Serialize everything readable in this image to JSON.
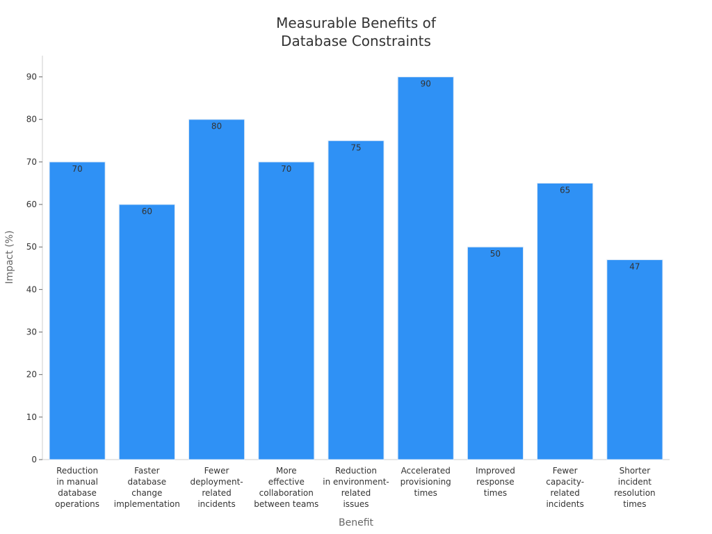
{
  "chart_data": {
    "type": "bar",
    "title_lines": [
      "Measurable Benefits of",
      "Database Constraints"
    ],
    "xlabel": "Benefit",
    "ylabel": "Impact (%)",
    "ylim": [
      0,
      95
    ],
    "yticks": [
      0,
      10,
      20,
      30,
      40,
      50,
      60,
      70,
      80,
      90
    ],
    "grid": false,
    "bar_color": "#2f91f5",
    "categories": [
      [
        "Reduction",
        "in manual",
        "database",
        "operations"
      ],
      [
        "Faster",
        "database",
        "change",
        "implementation"
      ],
      [
        "Fewer",
        "deployment-",
        "related",
        "incidents"
      ],
      [
        "More",
        "effective",
        "collaboration",
        "between teams"
      ],
      [
        "Reduction",
        "in environment-",
        "related",
        "issues"
      ],
      [
        "Accelerated",
        "provisioning",
        "times"
      ],
      [
        "Improved",
        "response",
        "times"
      ],
      [
        "Fewer",
        "capacity-",
        "related",
        "incidents"
      ],
      [
        "Shorter",
        "incident",
        "resolution",
        "times"
      ]
    ],
    "values": [
      70,
      60,
      80,
      70,
      75,
      90,
      50,
      65,
      47
    ]
  }
}
